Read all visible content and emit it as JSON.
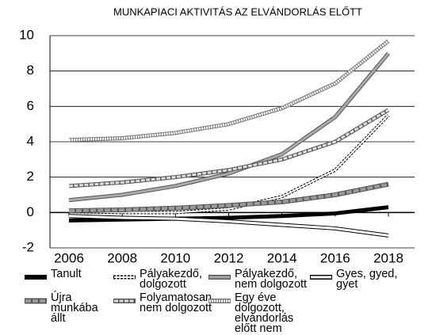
{
  "chart_data": {
    "type": "line",
    "title": "MUNKAPIACI AKTIVITÁS AZ ELVÁNDORLÁS ELŐTT",
    "x": [
      2006,
      2008,
      2010,
      2012,
      2014,
      2016,
      2018
    ],
    "xlim": [
      2006,
      2018
    ],
    "xticks": [
      2006,
      2008,
      2010,
      2012,
      2014,
      2016,
      2018
    ],
    "ylim": [
      -2,
      10
    ],
    "yticks": [
      -2,
      0,
      2,
      4,
      6,
      8,
      10
    ],
    "grid": true,
    "series": [
      {
        "name": "Tanult",
        "color": "#000000",
        "values": [
          -0.45,
          -0.4,
          -0.35,
          -0.3,
          -0.2,
          -0.05,
          0.3
        ]
      },
      {
        "name": "Pályakezdő, dolgozott",
        "color": "#000000",
        "values": [
          0.05,
          0,
          0,
          0.2,
          0.9,
          2.4,
          5.5
        ]
      },
      {
        "name": "Pályakezdő, nem dolgozott",
        "color": "#555555",
        "values": [
          0.7,
          1.0,
          1.5,
          2.2,
          3.3,
          5.4,
          9.0
        ]
      },
      {
        "name": "Gyes, gyed, gyet",
        "color": "#000000",
        "values": [
          -0.2,
          -0.3,
          -0.35,
          -0.5,
          -0.7,
          -0.9,
          -1.3
        ]
      },
      {
        "name": "Újra munkába állt",
        "color": "#555555",
        "values": [
          0.1,
          0.15,
          0.25,
          0.4,
          0.6,
          1.0,
          1.6
        ]
      },
      {
        "name": "Folyamatosan nem dolgozott",
        "color": "#555555",
        "values": [
          1.5,
          1.7,
          2.0,
          2.4,
          3.0,
          4.0,
          5.8
        ]
      },
      {
        "name": "Egy éve dolgozott, elvándorlás előtt nem",
        "color": "#777777",
        "values": [
          4.1,
          4.2,
          4.5,
          5.0,
          5.9,
          7.3,
          9.7
        ]
      }
    ]
  }
}
